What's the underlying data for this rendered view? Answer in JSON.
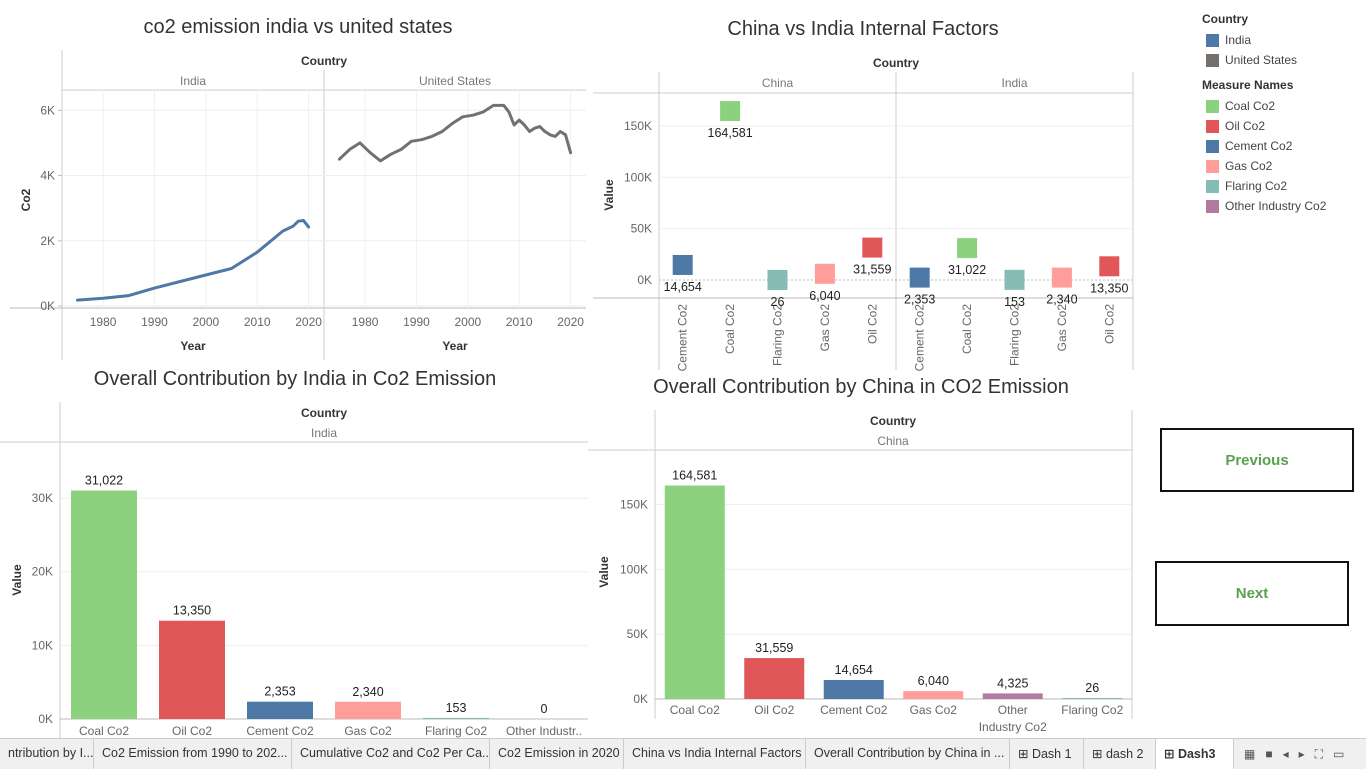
{
  "chart_data": [
    {
      "type": "line",
      "title": "co2 emission india vs united states",
      "facet_header": "Country",
      "panels": [
        "India",
        "United States"
      ],
      "xlabel": "Year",
      "ylabel": "Co2",
      "ylim": [
        0,
        6500
      ],
      "yticks": [
        0,
        2000,
        4000,
        6000
      ],
      "ytick_labels": [
        "0K",
        "2K",
        "4K",
        "6K"
      ],
      "xticks": [
        1980,
        1990,
        2000,
        2010,
        2020
      ],
      "xlim": [
        1972,
        2023
      ],
      "series": [
        {
          "panel": "India",
          "color": "#4e79a7",
          "x": [
            1975,
            1980,
            1985,
            1990,
            1995,
            2000,
            2005,
            2010,
            2015,
            2017,
            2018,
            2019,
            2020
          ],
          "values": [
            180,
            240,
            320,
            550,
            750,
            950,
            1150,
            1650,
            2300,
            2450,
            2600,
            2620,
            2420
          ]
        },
        {
          "panel": "United States",
          "color": "#76706c",
          "x": [
            1975,
            1977,
            1979,
            1981,
            1983,
            1985,
            1987,
            1989,
            1991,
            1993,
            1995,
            1997,
            1999,
            2001,
            2003,
            2005,
            2007,
            2008,
            2009,
            2010,
            2011,
            2012,
            2013,
            2014,
            2015,
            2016,
            2017,
            2018,
            2019,
            2020
          ],
          "values": [
            4500,
            4800,
            5000,
            4700,
            4450,
            4650,
            4800,
            5050,
            5100,
            5200,
            5350,
            5600,
            5800,
            5850,
            5950,
            6150,
            6150,
            5950,
            5550,
            5700,
            5550,
            5350,
            5450,
            5500,
            5350,
            5250,
            5200,
            5350,
            5250,
            4700
          ]
        }
      ]
    },
    {
      "type": "scatter",
      "title": "China vs India Internal Factors",
      "facet_header": "Country",
      "panels": [
        "China",
        "India"
      ],
      "ylabel": "Value",
      "ylim": [
        -5000,
        185000
      ],
      "yticks": [
        0,
        50000,
        100000,
        150000
      ],
      "ytick_labels": [
        "0K",
        "50K",
        "100K",
        "150K"
      ],
      "categories": [
        "Cement Co2",
        "Coal Co2",
        "Flaring Co2",
        "Gas Co2",
        "Oil Co2"
      ],
      "points": [
        {
          "panel": "China",
          "category": "Cement Co2",
          "value": 14654,
          "label": "14,654",
          "color": "#4e79a7"
        },
        {
          "panel": "China",
          "category": "Coal Co2",
          "value": 164581,
          "label": "164,581",
          "color": "#8cd17d"
        },
        {
          "panel": "China",
          "category": "Flaring Co2",
          "value": 26,
          "label": "26",
          "color": "#86bcb6"
        },
        {
          "panel": "China",
          "category": "Gas Co2",
          "value": 6040,
          "label": "6,040",
          "color": "#ff9d9a"
        },
        {
          "panel": "China",
          "category": "Oil Co2",
          "value": 31559,
          "label": "31,559",
          "color": "#e15759"
        },
        {
          "panel": "India",
          "category": "Cement Co2",
          "value": 2353,
          "label": "2,353",
          "color": "#4e79a7"
        },
        {
          "panel": "India",
          "category": "Coal Co2",
          "value": 31022,
          "label": "31,022",
          "color": "#8cd17d"
        },
        {
          "panel": "India",
          "category": "Flaring Co2",
          "value": 153,
          "label": "153",
          "color": "#86bcb6"
        },
        {
          "panel": "India",
          "category": "Gas Co2",
          "value": 2340,
          "label": "2,340",
          "color": "#ff9d9a"
        },
        {
          "panel": "India",
          "category": "Oil Co2",
          "value": 13350,
          "label": "13,350",
          "color": "#e15759"
        }
      ]
    },
    {
      "type": "bar",
      "title": "Overall Contribution by India in Co2 Emission",
      "facet_header": "Country",
      "panel": "India",
      "ylabel": "Value",
      "ylim": [
        0,
        33000
      ],
      "yticks": [
        0,
        10000,
        20000,
        30000
      ],
      "ytick_labels": [
        "0K",
        "10K",
        "20K",
        "30K"
      ],
      "categories": [
        "Coal Co2",
        "Oil Co2",
        "Cement Co2",
        "Gas Co2",
        "Flaring Co2",
        "Other Industr.."
      ],
      "values": [
        31022,
        13350,
        2353,
        2340,
        153,
        0
      ],
      "labels": [
        "31,022",
        "13,350",
        "2,353",
        "2,340",
        "153",
        "0"
      ],
      "colors": [
        "#8cd17d",
        "#e15759",
        "#4e79a7",
        "#ff9d9a",
        "#86bcb6",
        "#b07aa1"
      ]
    },
    {
      "type": "bar",
      "title": "Overall Contribution by China in CO2 Emission",
      "facet_header": "Country",
      "panel": "China",
      "ylabel": "Value",
      "ylim": [
        0,
        175000
      ],
      "yticks": [
        0,
        50000,
        100000,
        150000
      ],
      "ytick_labels": [
        "0K",
        "50K",
        "100K",
        "150K"
      ],
      "categories": [
        "Coal Co2",
        "Oil Co2",
        "Cement Co2",
        "Gas Co2",
        "Other Industry Co2",
        "Flaring Co2"
      ],
      "category_lines": [
        [
          "Coal Co2"
        ],
        [
          "Oil Co2"
        ],
        [
          "Cement Co2"
        ],
        [
          "Gas Co2"
        ],
        [
          "Other",
          "Industry Co2"
        ],
        [
          "Flaring Co2"
        ]
      ],
      "values": [
        164581,
        31559,
        14654,
        6040,
        4325,
        26
      ],
      "labels": [
        "164,581",
        "31,559",
        "14,654",
        "6,040",
        "4,325",
        "26"
      ],
      "colors": [
        "#8cd17d",
        "#e15759",
        "#4e79a7",
        "#ff9d9a",
        "#b07aa1",
        "#86bcb6"
      ]
    }
  ],
  "legend": {
    "country_title": "Country",
    "countries": [
      {
        "label": "India",
        "color": "#4e79a7"
      },
      {
        "label": "United States",
        "color": "#76706c"
      }
    ],
    "measure_title": "Measure Names",
    "measures": [
      {
        "label": "Coal Co2",
        "color": "#8cd17d"
      },
      {
        "label": "Oil Co2",
        "color": "#e15759"
      },
      {
        "label": "Cement Co2",
        "color": "#4e79a7"
      },
      {
        "label": "Gas Co2",
        "color": "#ff9d9a"
      },
      {
        "label": "Flaring Co2",
        "color": "#86bcb6"
      },
      {
        "label": "Other Industry Co2",
        "color": "#b07aa1"
      }
    ]
  },
  "buttons": {
    "previous": "Previous",
    "next": "Next"
  },
  "tabs": [
    {
      "label": "ntribution by I..."
    },
    {
      "label": "Co2 Emission from 1990 to 202..."
    },
    {
      "label": "Cumulative Co2 and Co2 Per Ca..."
    },
    {
      "label": "Co2 Emission in 2020"
    },
    {
      "label": "China vs India Internal Factors"
    },
    {
      "label": "Overall Contribution by China in ..."
    },
    {
      "label": "Dash 1",
      "icon": "dashboard-icon"
    },
    {
      "label": "dash 2",
      "icon": "dashboard-icon"
    },
    {
      "label": "Dash3",
      "icon": "dashboard-icon",
      "active": true
    }
  ],
  "tab_controls": [
    "grid-view-icon",
    "filmstrip-icon",
    "prev-sheet-icon",
    "next-sheet-icon",
    "fullscreen-icon",
    "present-icon"
  ]
}
